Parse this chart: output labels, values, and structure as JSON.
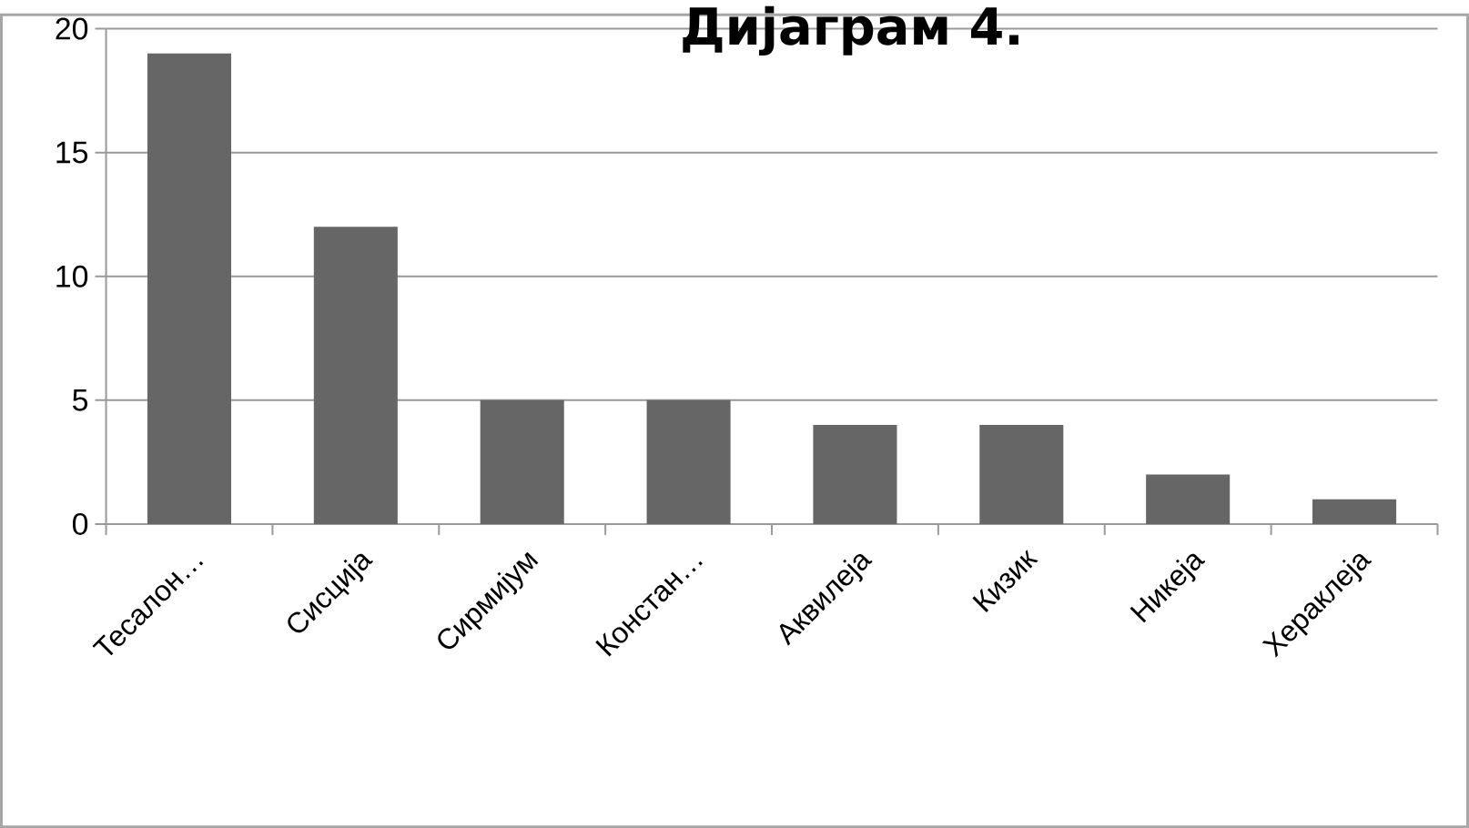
{
  "chart_data": {
    "type": "bar",
    "title": "Дијаграм 4.",
    "categories": [
      "Тесалон…",
      "Сисција",
      "Сирмијум",
      "Констан…",
      "Аквилеја",
      "Кизик",
      "Никеја",
      "Хераклеја"
    ],
    "values": [
      19,
      12,
      5,
      5,
      4,
      4,
      2,
      1
    ],
    "color": "#666666",
    "ylim": [
      0,
      20
    ],
    "yticks": [
      0,
      5,
      10,
      15,
      20
    ],
    "grid": "y"
  }
}
